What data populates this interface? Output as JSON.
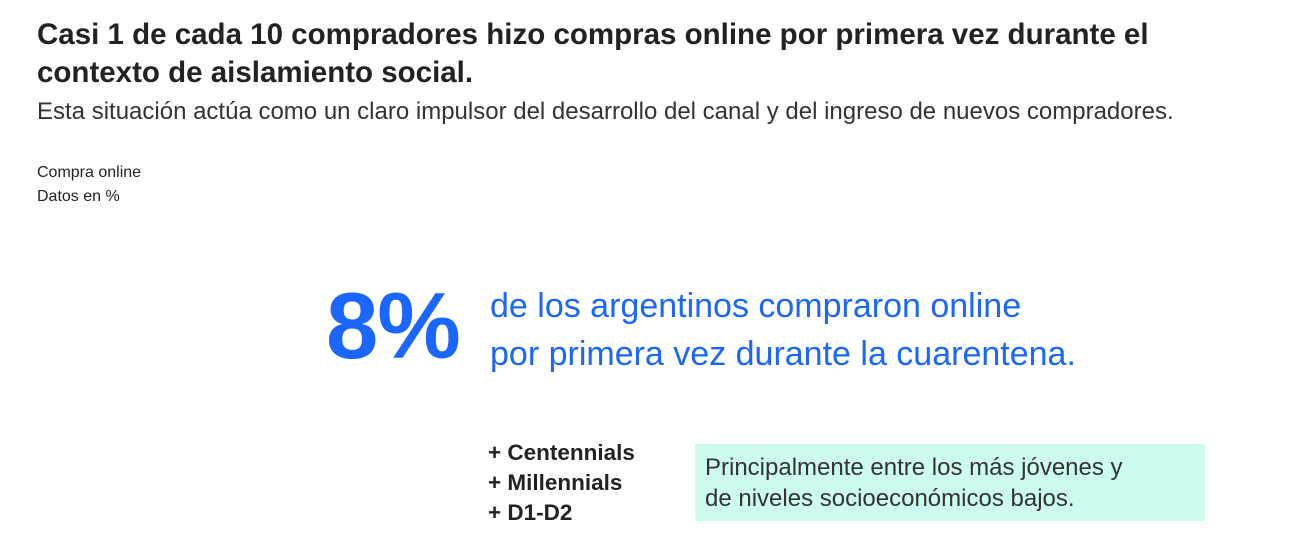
{
  "header": {
    "title": "Casi 1 de cada 10 compradores hizo compras online por primera vez durante el contexto de aislamiento social.",
    "subtitle": "Esta situación actúa como un claro impulsor del desarrollo del canal y del ingreso de nuevos compradores.",
    "note_1": "Compra online",
    "note_2": "Datos en %"
  },
  "highlight": {
    "value": "8%",
    "line_1": "de los argentinos compraron online",
    "line_2": "por primera vez durante la cuarentena."
  },
  "segments": [
    "+ Centennials",
    "+ Millennials",
    "+ D1-D2"
  ],
  "callout": {
    "line_1": "Principalmente entre los más jóvenes y",
    "line_2": "de niveles socioeconómicos bajos."
  },
  "colors": {
    "accent": "#1a66ff",
    "callout_bg": "#ccfbef"
  }
}
